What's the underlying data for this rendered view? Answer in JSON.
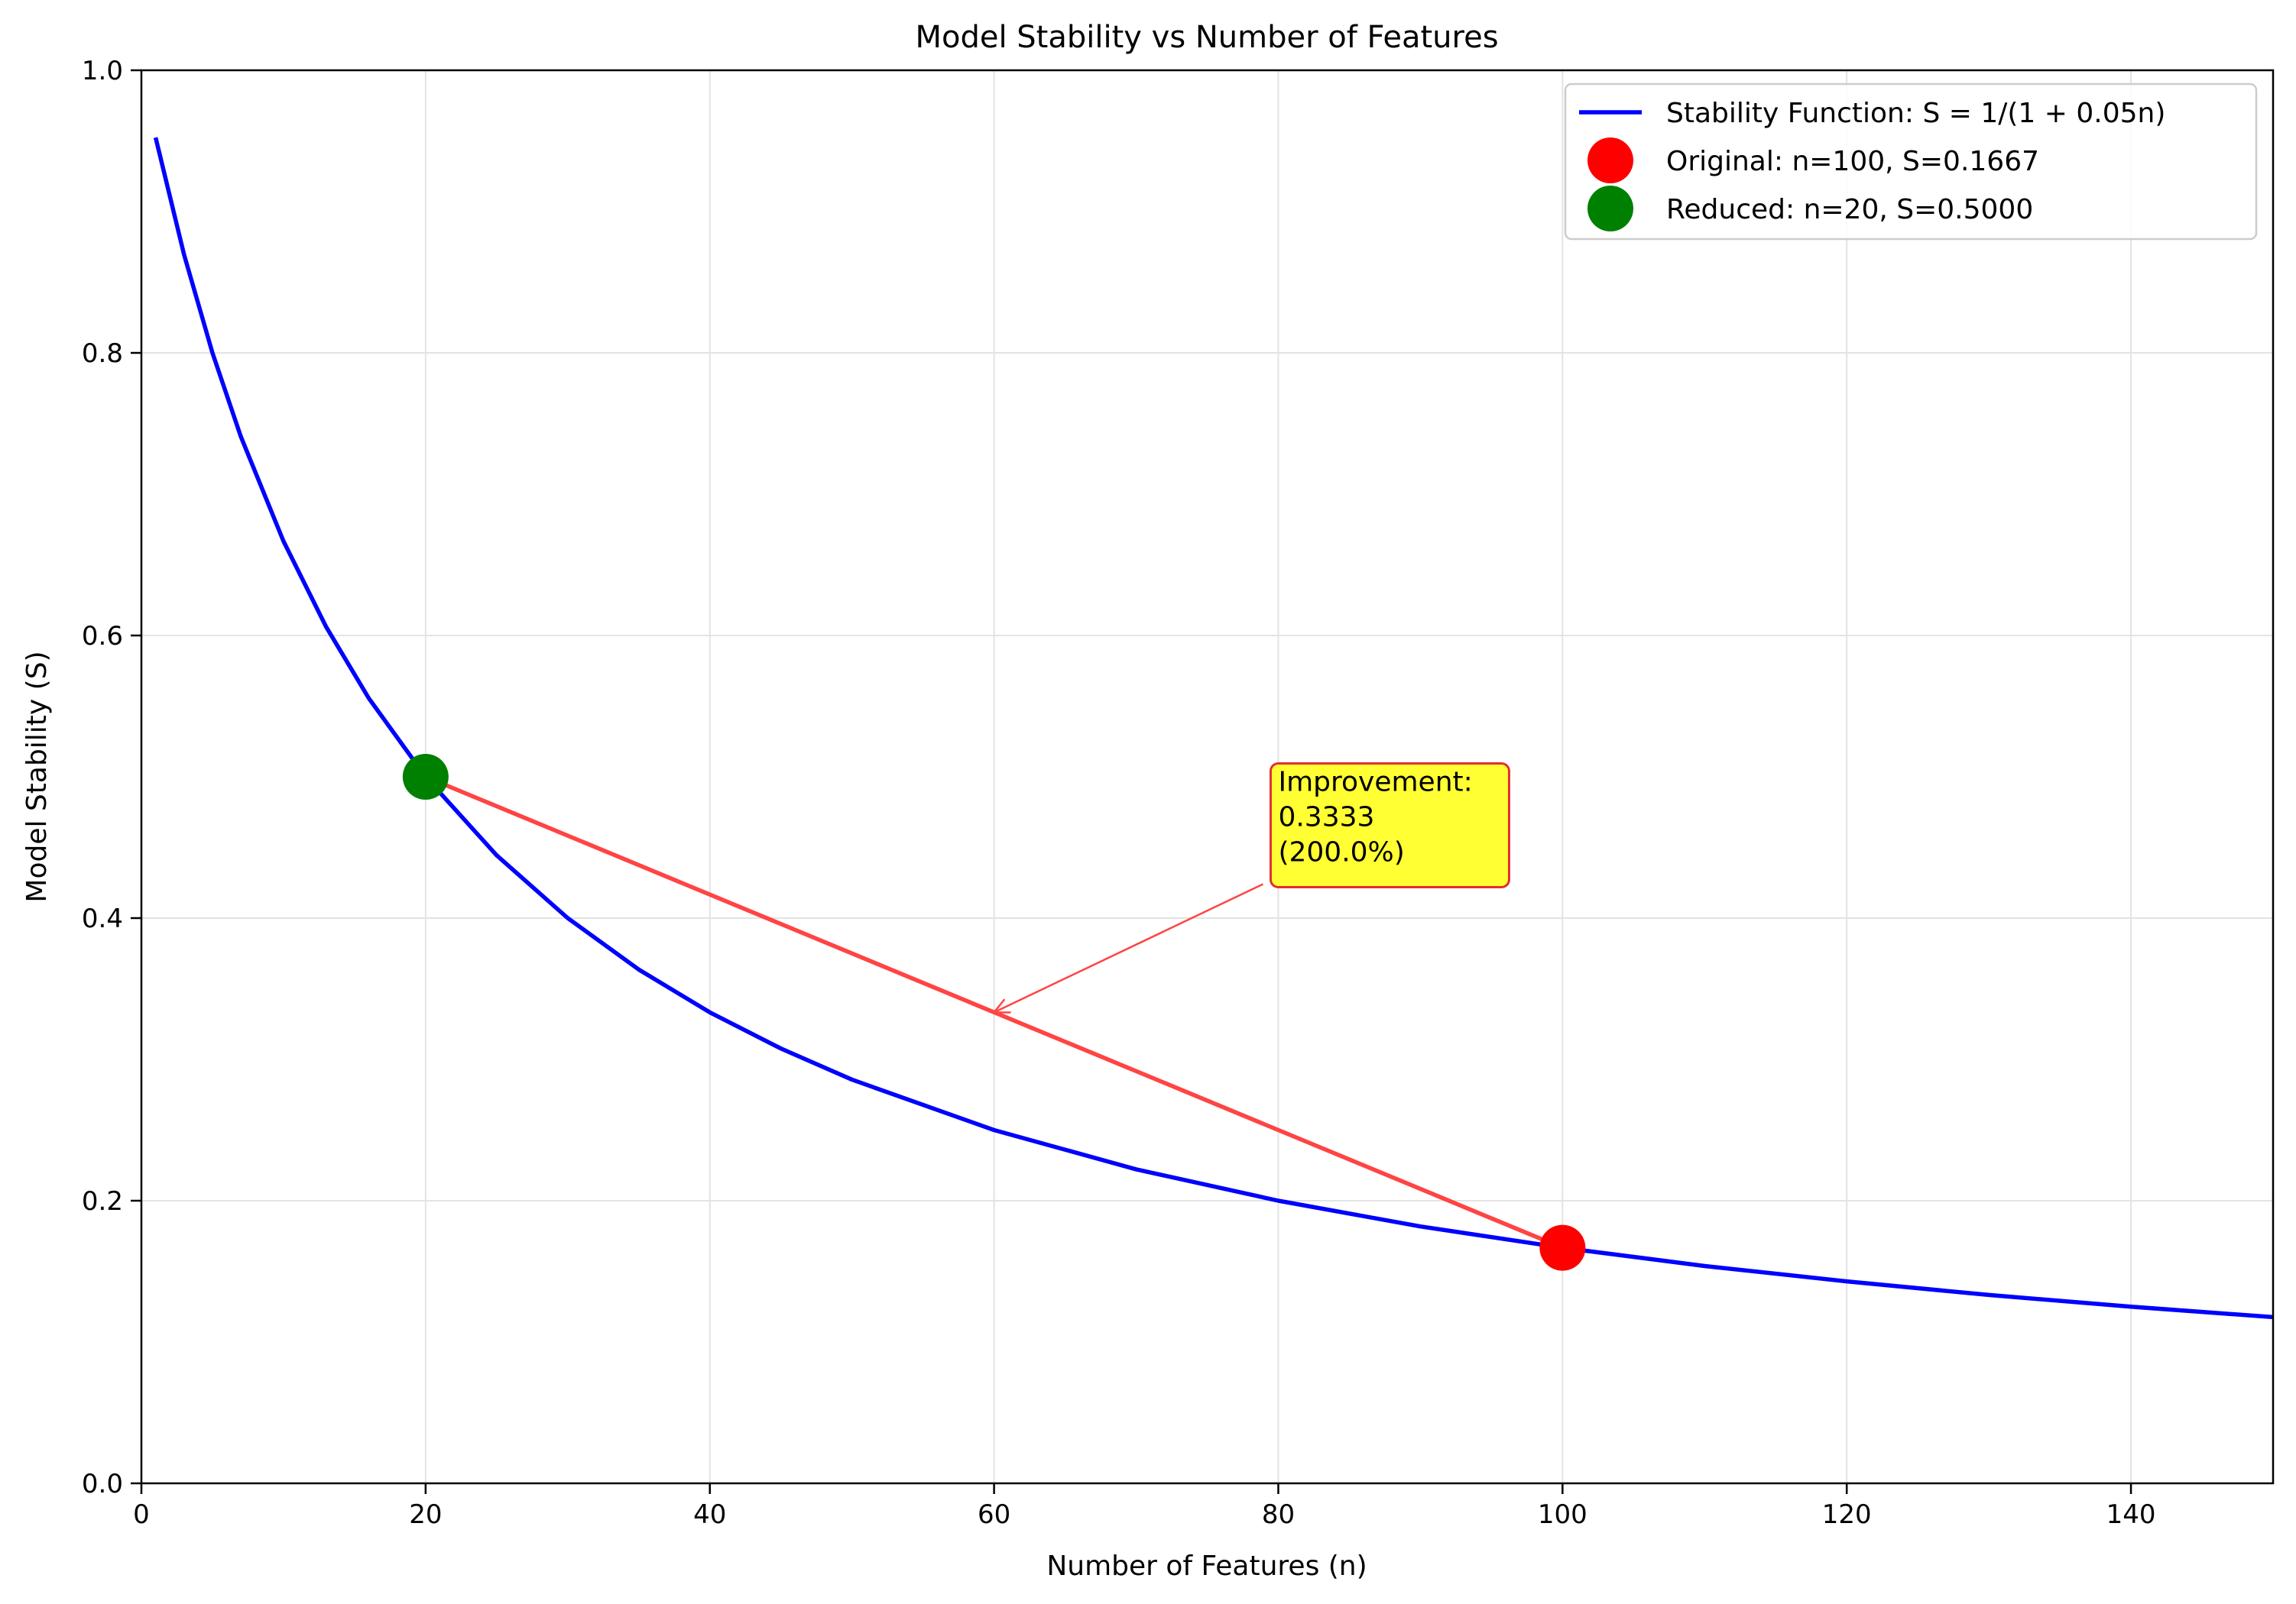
{
  "chart_data": {
    "type": "line",
    "title": "Model Stability vs Number of Features",
    "xlabel": "Number of Features (n)",
    "ylabel": "Model Stability (S)",
    "xlim": [
      0,
      150
    ],
    "ylim": [
      0.0,
      1.0
    ],
    "xticks": [
      0,
      20,
      40,
      60,
      80,
      100,
      120,
      140
    ],
    "yticks": [
      0.0,
      0.2,
      0.4,
      0.6,
      0.8,
      1.0
    ],
    "xtick_labels": [
      "0",
      "20",
      "40",
      "60",
      "80",
      "100",
      "120",
      "140"
    ],
    "ytick_labels": [
      "0.0",
      "0.2",
      "0.4",
      "0.6",
      "0.8",
      "1.0"
    ],
    "grid": true,
    "legend_position": "top-right",
    "series": [
      {
        "name": "Stability Function: S = 1/(1 + 0.05n)",
        "kind": "line",
        "color": "#0000ff",
        "x": [
          1,
          3,
          5,
          7,
          10,
          13,
          16,
          20,
          25,
          30,
          35,
          40,
          45,
          50,
          60,
          70,
          80,
          90,
          100,
          110,
          120,
          130,
          140,
          150
        ],
        "y": [
          0.9524,
          0.8696,
          0.8,
          0.7407,
          0.6667,
          0.6061,
          0.5556,
          0.5,
          0.4444,
          0.4,
          0.3636,
          0.3333,
          0.3077,
          0.2857,
          0.25,
          0.2222,
          0.2,
          0.1818,
          0.1667,
          0.1538,
          0.1429,
          0.1333,
          0.125,
          0.1176
        ]
      },
      {
        "name": "Original: n=100, S=0.1667",
        "kind": "point",
        "color": "#ff0000",
        "x": [
          100
        ],
        "y": [
          0.1667
        ]
      },
      {
        "name": "Reduced: n=20, S=0.5000",
        "kind": "point",
        "color": "#008000",
        "x": [
          20
        ],
        "y": [
          0.5
        ]
      }
    ],
    "arrow": {
      "color": "#ff4444",
      "from": [
        100,
        0.1667
      ],
      "to": [
        20,
        0.5
      ]
    },
    "annotation": {
      "lines": [
        "Improvement:",
        "0.3333",
        "(200.0%)"
      ],
      "text_at": [
        80,
        0.49
      ],
      "points_to": [
        60,
        0.3333
      ],
      "box_color": "#ffff33",
      "border_color": "#e03030"
    }
  }
}
